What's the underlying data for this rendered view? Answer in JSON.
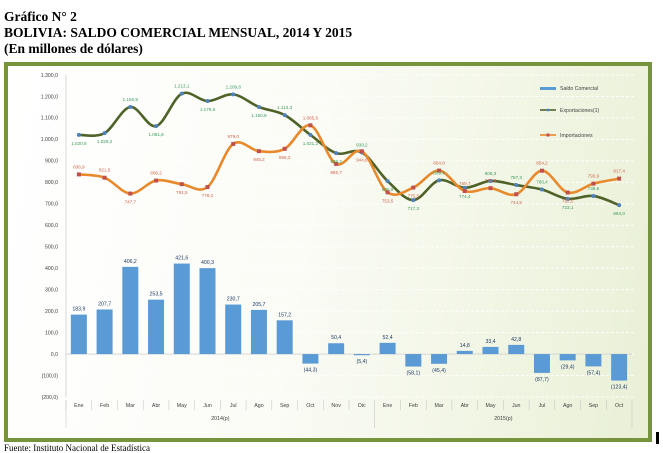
{
  "header": {
    "line1": "Gráfico N° 2",
    "line2": "BOLIVIA: SALDO COMERCIAL MENSUAL, 2014 Y 2015",
    "line3": "(En millones de dólares)"
  },
  "footer": {
    "source": "Fuente: Instituto Nacional de Estadística"
  },
  "chart_data": {
    "type": "bar+line",
    "title": "BOLIVIA: SALDO COMERCIAL MENSUAL, 2014 Y 2015",
    "ylabel": "En millones de dólares",
    "ylim": [
      -200,
      1300
    ],
    "yticks": [
      -200,
      -100,
      0,
      100,
      200,
      300,
      400,
      500,
      600,
      700,
      800,
      900,
      1000,
      1100,
      1200,
      1300
    ],
    "categories": [
      "Ene",
      "Feb",
      "Mar",
      "Abr",
      "May",
      "Jun",
      "Jul",
      "Ago",
      "Sep",
      "Oct",
      "Nov",
      "Dic",
      "Ene",
      "Feb",
      "Mar",
      "Abr",
      "May",
      "Jun",
      "Jul",
      "Ago",
      "Sep",
      "Oct"
    ],
    "groups": [
      {
        "label": "2014(p)",
        "count": 12
      },
      {
        "label": "2015(p)",
        "count": 10
      }
    ],
    "legend_position": "right",
    "grid": true,
    "series": [
      {
        "name": "Saldo Comercial",
        "type": "bar",
        "color": "#5b9bd5",
        "values": [
          183.9,
          207.7,
          406.2,
          253.5,
          421.6,
          400.3,
          230.7,
          205.7,
          157.2,
          -44.3,
          50.4,
          -5.4,
          52.4,
          -58.1,
          -45.4,
          14.8,
          33.4,
          42.8,
          -87.7,
          -29.4,
          -57.4,
          -123.4
        ]
      },
      {
        "name": "Exportaciones(1)",
        "type": "line",
        "color": "#4f6228",
        "marker": "#4f81bd",
        "label_color": "#3a9a5a",
        "values": [
          1020.8,
          1029.2,
          1150.9,
          1061.8,
          1213.1,
          1178.6,
          1209.8,
          1150.9,
          1113.3,
          1021.2,
          936.2,
          939.2,
          805.9,
          717.3,
          809.4,
          774.4,
          806.3,
          787.3,
          766.4,
          723.1,
          736.5,
          694.0
        ]
      },
      {
        "name": "Importaciones",
        "type": "line",
        "color": "#e8892c",
        "marker": "#c0504d",
        "label_color": "#d0644a",
        "values": [
          836.9,
          821.5,
          747.7,
          808.2,
          791.5,
          778.2,
          979.0,
          945.2,
          956.2,
          1065.6,
          885.7,
          944.6,
          753.5,
          775.5,
          854.8,
          759.7,
          772.9,
          744.5,
          854.2,
          752.5,
          793.9,
          817.4
        ]
      }
    ]
  }
}
